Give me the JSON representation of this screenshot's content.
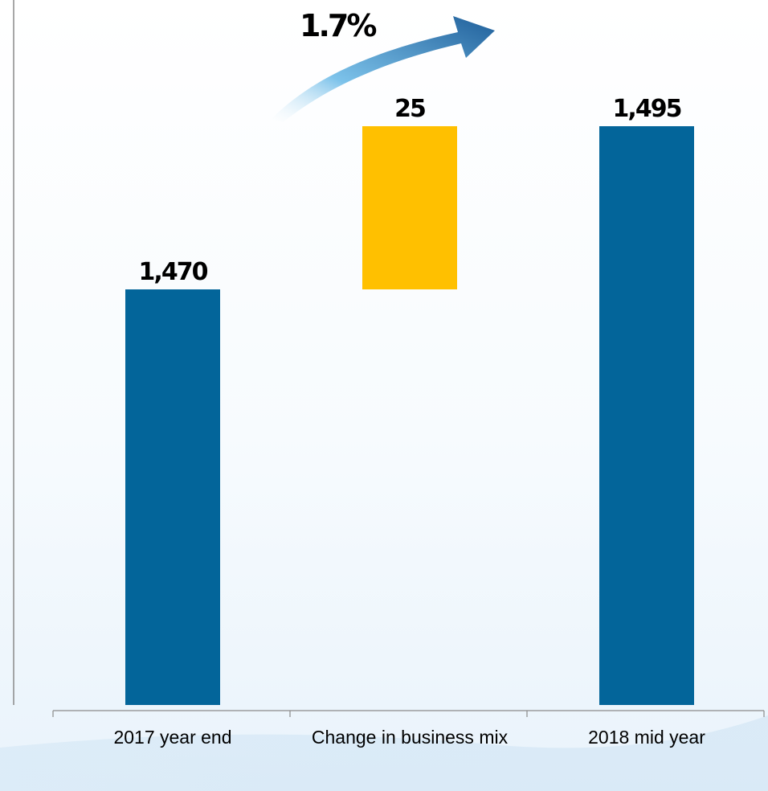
{
  "chart_data": {
    "type": "bar",
    "subtype": "waterfall",
    "categories": [
      "2017 year end",
      "Change in business mix",
      "2018 mid year"
    ],
    "values": [
      1470,
      25,
      1495
    ],
    "value_labels": [
      "1,470",
      "25",
      "1,495"
    ],
    "base": [
      0,
      1470,
      0
    ],
    "colors": [
      "#03659a",
      "#ffc000",
      "#03659a"
    ],
    "annotation": "1.7%",
    "grid": false,
    "legend": "none"
  }
}
